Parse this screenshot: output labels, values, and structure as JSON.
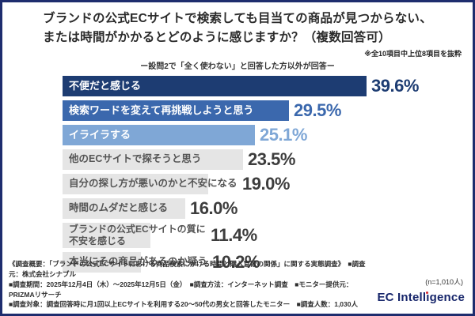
{
  "header": {
    "title_line1": "ブランドの公式ECサイトで検索しても目当ての商品が見つからない、",
    "title_line2": "または時間がかかるとどのように感じますか？（複数回答可）",
    "note": "※全10項目中上位8項目を抜粋",
    "subtitle": "ー設問2で「全く使わない」と回答した方以外が回答ー"
  },
  "chart_data": {
    "type": "bar",
    "orientation": "horizontal",
    "title": "ブランドの公式ECサイトで検索しても目当ての商品が見つからない、または時間がかかるとどのように感じますか？（複数回答可）",
    "subtitle": "ー設問2で「全く使わない」と回答した方以外が回答ー",
    "unit": "%",
    "xlim": [
      0,
      41
    ],
    "grid": false,
    "legend": false,
    "categories": [
      "不便だと感じる",
      "検索ワードを変えて再挑戦しようと思う",
      "イライラする",
      "他のECサイトで探そうと思う",
      "自分の探し方が悪いのかと不安になる",
      "時間のムダだと感じる",
      "ブランドの公式ECサイトの質に不安を感じる",
      "本当にその商品があるのか疑う"
    ],
    "values": [
      39.6,
      29.5,
      25.1,
      23.5,
      19.0,
      16.0,
      11.4,
      10.2
    ],
    "bars": [
      {
        "lines": [
          "不便だと感じる"
        ],
        "value": 39.6,
        "display": "39.6%",
        "style": "navy"
      },
      {
        "lines": [
          "検索ワードを変えて再挑戦しようと思う"
        ],
        "value": 29.5,
        "display": "29.5%",
        "style": "blue"
      },
      {
        "lines": [
          "イライラする"
        ],
        "value": 25.1,
        "display": "25.1%",
        "style": "lightblue"
      },
      {
        "lines": [
          "他のECサイトで探そうと思う"
        ],
        "value": 23.5,
        "display": "23.5%",
        "style": "gray"
      },
      {
        "lines": [
          "自分の探し方が悪いのかと不安になる"
        ],
        "value": 19.0,
        "display": "19.0%",
        "style": "gray"
      },
      {
        "lines": [
          "時間のムダだと感じる"
        ],
        "value": 16.0,
        "display": "16.0%",
        "style": "gray"
      },
      {
        "lines": [
          "ブランドの公式ECサイトの質に",
          "不安を感じる"
        ],
        "value": 11.4,
        "display": "11.4%",
        "style": "gray"
      },
      {
        "lines": [
          "本当にその商品があるのか疑う"
        ],
        "value": 10.2,
        "display": "10.2%",
        "style": "gray"
      }
    ],
    "styles": {
      "navy": {
        "bar": "#1d3c72",
        "label": "#ffffff",
        "pct": "#1d3c72"
      },
      "blue": {
        "bar": "#3b68ad",
        "label": "#ffffff",
        "pct": "#3b68ad"
      },
      "lightblue": {
        "bar": "#7fa7d6",
        "label": "#ffffff",
        "pct": "#7fa7d6"
      },
      "gray": {
        "bar": "#e5e5e5",
        "label": "#555555",
        "pct": "#3d3d3d"
      }
    },
    "n_note": "(n=1,010人)"
  },
  "footer": {
    "lines": [
      "《調査概要：「ブランドの公式ECサイトにおける商品検索にかける時間と購入意欲の関係」に関する実態調査》　■調査元：株式会社シナブル",
      "■調査期間：2025年12月4日（木）～2025年12月5日（金）　■調査方法：インターネット調査　■モニター提供元：PRIZMAリサーチ",
      "■調査対象：調査回答時に月1回以上ECサイトを利用する20～50代の男女と回答したモニター　■調査人数：1,030人"
    ],
    "logo": "EC Intelligence"
  },
  "colors": {
    "frame_border": "#1e2d6e",
    "logo_text": "#17266b",
    "logo_dot": "#d8262c",
    "title_text": "#2b2b2b"
  }
}
